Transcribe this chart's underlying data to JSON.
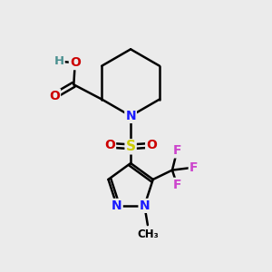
{
  "background_color": "#ebebeb",
  "atom_colors": {
    "C": "#000000",
    "H": "#4a9090",
    "N": "#1a1aff",
    "O": "#cc0000",
    "S": "#cccc00",
    "F": "#cc44cc"
  },
  "bond_color": "#000000",
  "bond_width": 1.8,
  "figsize": [
    3.0,
    3.0
  ],
  "dpi": 100,
  "scale": 10
}
